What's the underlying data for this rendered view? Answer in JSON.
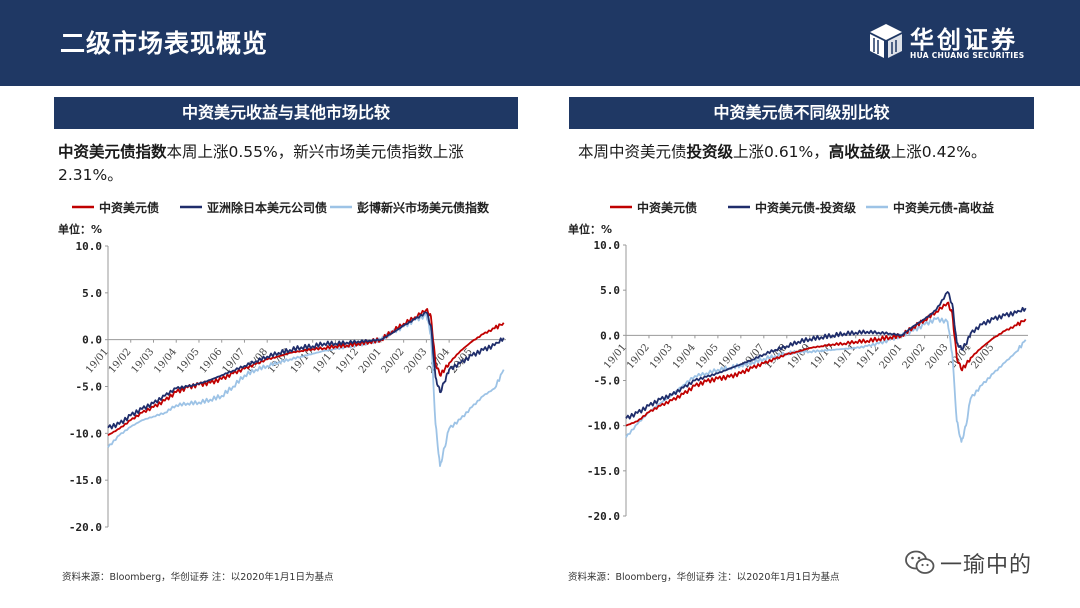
{
  "header": {
    "title": "二级市场表现概览"
  },
  "logo": {
    "cn": "华创证券",
    "en": "HUA CHUANG SECURITIES"
  },
  "left_panel": {
    "title": "中资美元收益与其他市场比较",
    "desc_bold": "中资美元债指数",
    "desc_rest": "本周上涨0.55%，新兴市场美元债指数上涨2.31%。",
    "note": "资料来源：Bloomberg，华创证券    注：以2020年1月1日为基点"
  },
  "right_panel": {
    "title": "中资美元债不同级别比较",
    "desc_a": "本周中资美元债",
    "desc_b": "投资级",
    "desc_c": "上涨0.61%，",
    "desc_d": "高收益级",
    "desc_e": "上涨0.42%。",
    "note": "资料来源：Bloomberg，华创证券    注：以2020年1月1日为基点"
  },
  "watermark": {
    "text": "一瑜中的"
  },
  "colors": {
    "navy": "#1f3864",
    "red": "#c00000",
    "dark_blue": "#1f2d6b",
    "light_blue": "#9dc3e6"
  },
  "chart_data": [
    {
      "type": "line",
      "unit": "单位：%",
      "ylim": [
        -20,
        10
      ],
      "yticks": [
        "10.0",
        "5.0",
        "0.0",
        "-5.0",
        "-10.0",
        "-15.0",
        "-20.0"
      ],
      "x_tick_labels": [
        "19/01",
        "19/02",
        "19/03",
        "19/04",
        "19/05",
        "19/06",
        "19/07",
        "19/08",
        "19/09",
        "19/10",
        "19/11",
        "19/12",
        "20/01",
        "20/02",
        "20/03",
        "20/04",
        "20/05"
      ],
      "legend_placement": "top",
      "series": [
        {
          "name": "中资美元债",
          "color": "#c00000",
          "points": [
            [
              0,
              -10.2
            ],
            [
              0.5,
              -9.5
            ],
            [
              1,
              -8.6
            ],
            [
              1.5,
              -7.8
            ],
            [
              2,
              -7.2
            ],
            [
              2.5,
              -6.5
            ],
            [
              3,
              -5.6
            ],
            [
              3.5,
              -5.1
            ],
            [
              4,
              -4.8
            ],
            [
              4.5,
              -4.6
            ],
            [
              5,
              -4.2
            ],
            [
              5.5,
              -3.6
            ],
            [
              6,
              -3.1
            ],
            [
              6.5,
              -2.6
            ],
            [
              7,
              -2.1
            ],
            [
              7.5,
              -1.8
            ],
            [
              8,
              -1.4
            ],
            [
              8.5,
              -1.2
            ],
            [
              9,
              -1.0
            ],
            [
              9.5,
              -0.9
            ],
            [
              10,
              -0.7
            ],
            [
              10.5,
              -0.6
            ],
            [
              11,
              -0.4
            ],
            [
              11.5,
              -0.2
            ],
            [
              12,
              0.0
            ],
            [
              12.5,
              0.9
            ],
            [
              13,
              1.7
            ],
            [
              13.5,
              2.4
            ],
            [
              14,
              3.2
            ],
            [
              14.2,
              2.5
            ],
            [
              14.4,
              -2.5
            ],
            [
              14.6,
              -3.8
            ],
            [
              14.8,
              -3.2
            ],
            [
              15,
              -2.5
            ],
            [
              15.5,
              -1.2
            ],
            [
              16,
              -0.2
            ],
            [
              16.5,
              0.6
            ],
            [
              17,
              1.2
            ],
            [
              17.4,
              1.8
            ]
          ]
        },
        {
          "name": "亚洲除日本美元公司债",
          "color": "#1f2d6b",
          "points": [
            [
              0,
              -9.4
            ],
            [
              0.5,
              -9.0
            ],
            [
              1,
              -8.1
            ],
            [
              1.5,
              -7.4
            ],
            [
              2,
              -6.8
            ],
            [
              2.5,
              -6.0
            ],
            [
              3,
              -5.2
            ],
            [
              3.5,
              -5.0
            ],
            [
              4,
              -4.7
            ],
            [
              4.5,
              -4.3
            ],
            [
              5,
              -3.8
            ],
            [
              5.5,
              -3.3
            ],
            [
              6,
              -2.8
            ],
            [
              6.5,
              -2.3
            ],
            [
              7,
              -1.8
            ],
            [
              7.5,
              -1.4
            ],
            [
              8,
              -1.1
            ],
            [
              8.5,
              -0.8
            ],
            [
              9,
              -0.7
            ],
            [
              9.5,
              -0.4
            ],
            [
              10,
              -0.4
            ],
            [
              10.5,
              -0.3
            ],
            [
              11,
              -0.2
            ],
            [
              11.5,
              -0.1
            ],
            [
              12,
              0.0
            ],
            [
              12.5,
              0.7
            ],
            [
              13,
              1.5
            ],
            [
              13.5,
              2.2
            ],
            [
              14,
              2.9
            ],
            [
              14.2,
              1.5
            ],
            [
              14.4,
              -4.0
            ],
            [
              14.6,
              -5.6
            ],
            [
              14.8,
              -4.5
            ],
            [
              15,
              -3.2
            ],
            [
              15.5,
              -2.5
            ],
            [
              16,
              -1.7
            ],
            [
              16.5,
              -1.1
            ],
            [
              17,
              -0.6
            ],
            [
              17.4,
              0.2
            ]
          ]
        },
        {
          "name": "彭博新兴市场美元债指数",
          "color": "#9dc3e6",
          "points": [
            [
              0,
              -11.5
            ],
            [
              0.5,
              -10.2
            ],
            [
              1,
              -9.3
            ],
            [
              1.5,
              -8.6
            ],
            [
              2,
              -8.2
            ],
            [
              2.5,
              -7.8
            ],
            [
              3,
              -7.0
            ],
            [
              3.5,
              -6.8
            ],
            [
              4,
              -6.7
            ],
            [
              4.5,
              -6.4
            ],
            [
              5,
              -6.0
            ],
            [
              5.5,
              -5.0
            ],
            [
              6,
              -3.8
            ],
            [
              6.5,
              -3.2
            ],
            [
              7,
              -2.8
            ],
            [
              7.5,
              -2.4
            ],
            [
              8,
              -2.1
            ],
            [
              8.5,
              -1.8
            ],
            [
              9,
              -1.5
            ],
            [
              9.5,
              -1.2
            ],
            [
              10,
              -1.0
            ],
            [
              10.5,
              -0.8
            ],
            [
              11,
              -0.6
            ],
            [
              11.5,
              -0.3
            ],
            [
              12,
              0.0
            ],
            [
              12.5,
              0.8
            ],
            [
              13,
              1.4
            ],
            [
              13.5,
              2.1
            ],
            [
              14,
              2.6
            ],
            [
              14.2,
              0.5
            ],
            [
              14.4,
              -9.0
            ],
            [
              14.6,
              -13.5
            ],
            [
              14.8,
              -11.5
            ],
            [
              15,
              -9.5
            ],
            [
              15.5,
              -8.5
            ],
            [
              16,
              -7.2
            ],
            [
              16.5,
              -6.0
            ],
            [
              17,
              -5.2
            ],
            [
              17.4,
              -3.2
            ]
          ]
        }
      ]
    },
    {
      "type": "line",
      "unit": "单位：%",
      "ylim": [
        -20,
        10
      ],
      "yticks": [
        "10.0",
        "5.0",
        "0.0",
        "-5.0",
        "-10.0",
        "-15.0",
        "-20.0"
      ],
      "x_tick_labels": [
        "19/01",
        "19/02",
        "19/03",
        "19/04",
        "19/05",
        "19/06",
        "19/07",
        "19/08",
        "19/09",
        "19/10",
        "19/11",
        "19/12",
        "20/01",
        "20/02",
        "20/03",
        "20/04",
        "20/05"
      ],
      "legend_placement": "top",
      "series": [
        {
          "name": "中资美元债",
          "color": "#c00000",
          "points": [
            [
              0,
              -10.0
            ],
            [
              0.5,
              -9.5
            ],
            [
              1,
              -8.5
            ],
            [
              1.5,
              -7.8
            ],
            [
              2,
              -7.2
            ],
            [
              2.5,
              -6.5
            ],
            [
              3,
              -5.6
            ],
            [
              3.5,
              -5.1
            ],
            [
              4,
              -4.8
            ],
            [
              4.5,
              -4.6
            ],
            [
              5,
              -4.2
            ],
            [
              5.5,
              -3.6
            ],
            [
              6,
              -3.1
            ],
            [
              6.5,
              -2.6
            ],
            [
              7,
              -2.1
            ],
            [
              7.5,
              -1.8
            ],
            [
              8,
              -1.4
            ],
            [
              8.5,
              -1.2
            ],
            [
              9,
              -1.0
            ],
            [
              9.5,
              -0.9
            ],
            [
              10,
              -0.7
            ],
            [
              10.5,
              -0.6
            ],
            [
              11,
              -0.4
            ],
            [
              11.5,
              -0.2
            ],
            [
              12,
              0.0
            ],
            [
              12.5,
              0.9
            ],
            [
              13,
              1.7
            ],
            [
              13.5,
              2.6
            ],
            [
              14,
              3.6
            ],
            [
              14.2,
              2.5
            ],
            [
              14.4,
              -2.5
            ],
            [
              14.6,
              -3.8
            ],
            [
              14.8,
              -3.3
            ],
            [
              15,
              -2.5
            ],
            [
              15.5,
              -1.3
            ],
            [
              16,
              -0.3
            ],
            [
              16.5,
              0.5
            ],
            [
              17,
              1.1
            ],
            [
              17.4,
              1.8
            ]
          ]
        },
        {
          "name": "中资美元债-投资级",
          "color": "#1f2d6b",
          "points": [
            [
              0,
              -9.2
            ],
            [
              0.5,
              -8.6
            ],
            [
              1,
              -7.8
            ],
            [
              1.5,
              -7.1
            ],
            [
              2,
              -6.6
            ],
            [
              2.5,
              -5.8
            ],
            [
              3,
              -5.0
            ],
            [
              3.5,
              -4.6
            ],
            [
              4,
              -4.2
            ],
            [
              4.5,
              -3.7
            ],
            [
              5,
              -3.2
            ],
            [
              5.5,
              -2.7
            ],
            [
              6,
              -2.1
            ],
            [
              6.5,
              -1.6
            ],
            [
              7,
              -1.2
            ],
            [
              7.5,
              -0.7
            ],
            [
              8,
              -0.4
            ],
            [
              8.5,
              -0.2
            ],
            [
              9,
              0.0
            ],
            [
              9.5,
              0.2
            ],
            [
              10,
              0.3
            ],
            [
              10.5,
              0.4
            ],
            [
              11,
              0.3
            ],
            [
              11.5,
              0.2
            ],
            [
              12,
              0.0
            ],
            [
              12.5,
              1.0
            ],
            [
              13,
              1.8
            ],
            [
              13.5,
              2.8
            ],
            [
              14,
              4.8
            ],
            [
              14.2,
              3.5
            ],
            [
              14.4,
              -0.8
            ],
            [
              14.6,
              -1.5
            ],
            [
              14.8,
              -1.0
            ],
            [
              15,
              0.2
            ],
            [
              15.5,
              1.2
            ],
            [
              16,
              1.8
            ],
            [
              16.5,
              2.2
            ],
            [
              17,
              2.5
            ],
            [
              17.4,
              3.0
            ]
          ]
        },
        {
          "name": "中资美元债-高收益",
          "color": "#9dc3e6",
          "points": [
            [
              0,
              -11.3
            ],
            [
              0.5,
              -9.8
            ],
            [
              1,
              -8.5
            ],
            [
              1.5,
              -7.5
            ],
            [
              2,
              -6.6
            ],
            [
              2.5,
              -5.5
            ],
            [
              3,
              -4.5
            ],
            [
              3.5,
              -4.2
            ],
            [
              4,
              -3.8
            ],
            [
              4.5,
              -3.6
            ],
            [
              5,
              -3.3
            ],
            [
              5.5,
              -3.0
            ],
            [
              6,
              -2.6
            ],
            [
              6.5,
              -2.3
            ],
            [
              7,
              -2.0
            ],
            [
              7.5,
              -1.8
            ],
            [
              8,
              -1.8
            ],
            [
              8.5,
              -1.7
            ],
            [
              9,
              -1.6
            ],
            [
              9.5,
              -1.5
            ],
            [
              10,
              -1.4
            ],
            [
              10.5,
              -1.2
            ],
            [
              11,
              -0.9
            ],
            [
              11.5,
              -0.5
            ],
            [
              12,
              0.0
            ],
            [
              12.5,
              0.5
            ],
            [
              13,
              1.2
            ],
            [
              13.5,
              1.8
            ],
            [
              14,
              1.5
            ],
            [
              14.2,
              -2.0
            ],
            [
              14.4,
              -9.5
            ],
            [
              14.6,
              -11.8
            ],
            [
              14.8,
              -10.0
            ],
            [
              15,
              -7.0
            ],
            [
              15.5,
              -5.5
            ],
            [
              16,
              -4.2
            ],
            [
              16.5,
              -3.0
            ],
            [
              17,
              -1.8
            ],
            [
              17.4,
              -0.5
            ]
          ]
        }
      ]
    }
  ]
}
